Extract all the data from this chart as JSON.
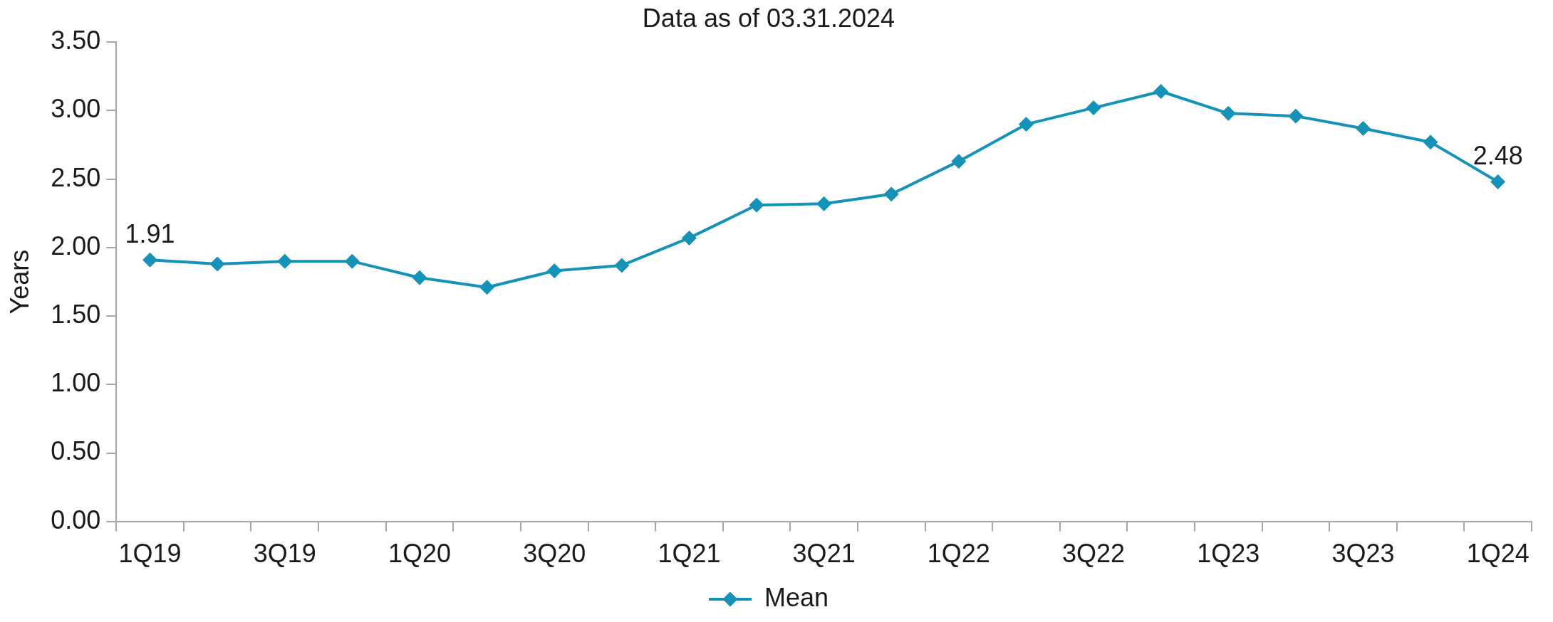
{
  "chart_data": {
    "type": "line",
    "subtitle": "Data as of 03.31.2024",
    "ylabel": "Years",
    "categories": [
      "1Q19",
      null,
      "3Q19",
      null,
      "1Q20",
      null,
      "3Q20",
      null,
      "1Q21",
      null,
      "3Q21",
      null,
      "1Q22",
      null,
      "3Q22",
      null,
      "1Q23",
      null,
      "3Q23",
      null,
      "1Q24"
    ],
    "series": [
      {
        "name": "Mean",
        "color": "#1492b8",
        "values": [
          1.91,
          1.88,
          1.9,
          1.9,
          1.78,
          1.71,
          1.83,
          1.87,
          2.07,
          2.31,
          2.32,
          2.39,
          2.63,
          2.9,
          3.02,
          3.14,
          2.98,
          2.96,
          2.87,
          2.77,
          2.48
        ],
        "value_labels": [
          "1.91",
          null,
          null,
          null,
          null,
          null,
          null,
          null,
          null,
          null,
          null,
          null,
          null,
          null,
          null,
          null,
          null,
          null,
          null,
          null,
          "2.48"
        ]
      }
    ],
    "ylim": [
      0,
      3.5
    ],
    "yticks": [
      {
        "value": 0,
        "label": "0.00"
      },
      {
        "value": 0.5,
        "label": "0.50"
      },
      {
        "value": 1,
        "label": "1.00"
      },
      {
        "value": 1.5,
        "label": "1.50"
      },
      {
        "value": 2,
        "label": "2.00"
      },
      {
        "value": 2.5,
        "label": "2.50"
      },
      {
        "value": 3,
        "label": "3.00"
      },
      {
        "value": 3.5,
        "label": "3.50"
      }
    ],
    "legend": "bottom",
    "marker": "diamond",
    "line_style": "solid"
  }
}
